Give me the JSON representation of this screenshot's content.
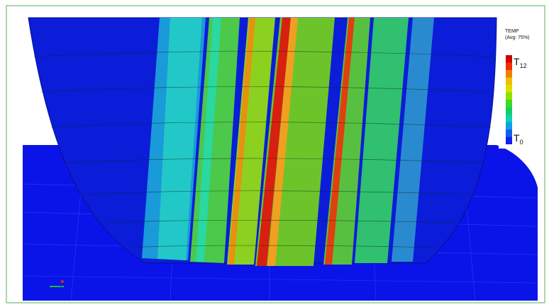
{
  "legend": {
    "title": "TEMP",
    "subtitle": "(Avg: 75%)",
    "max": {
      "symbol": "T",
      "subscript": "12"
    },
    "min": {
      "symbol": "T",
      "subscript": "0"
    }
  }
}
